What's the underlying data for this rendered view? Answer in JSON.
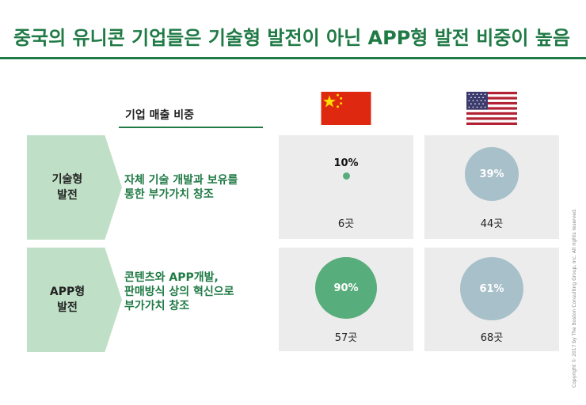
{
  "title": "중국의 유니콘 기업들은 기술형 발전이 아닌 APP형 발전 비중이 높음",
  "column_header": "기업 매출 비중",
  "rows": [
    {
      "label_line1": "기술형",
      "label_line2": "발전",
      "desc_line1": "자체 기술 개발과 보유를",
      "desc_line2": "통한 부가가치 창조",
      "desc_line3": ""
    },
    {
      "label_line1": "APP형",
      "label_line2": "발전",
      "desc_line1": "콘텐츠와 APP개발,",
      "desc_line2": "판매방식 상의 혁신으로",
      "desc_line3": "부가가치 창조"
    }
  ],
  "cells": {
    "cn_tech": {
      "percent": "10%",
      "count": "6곳",
      "share": 0.1,
      "color": "#58ad7c"
    },
    "us_tech": {
      "percent": "39%",
      "count": "44곳",
      "share": 0.39,
      "color": "#a8c0ca"
    },
    "cn_app": {
      "percent": "90%",
      "count": "57곳",
      "share": 0.9,
      "color": "#58ad7c"
    },
    "us_app": {
      "percent": "61%",
      "count": "68곳",
      "share": 0.61,
      "color": "#a8c0ca"
    }
  },
  "flags": {
    "china": "china-flag-icon",
    "usa": "usa-flag-icon"
  },
  "copyright": "Copyright © 2017 by The Boston Consulting Group, Inc. All rights reserved."
}
